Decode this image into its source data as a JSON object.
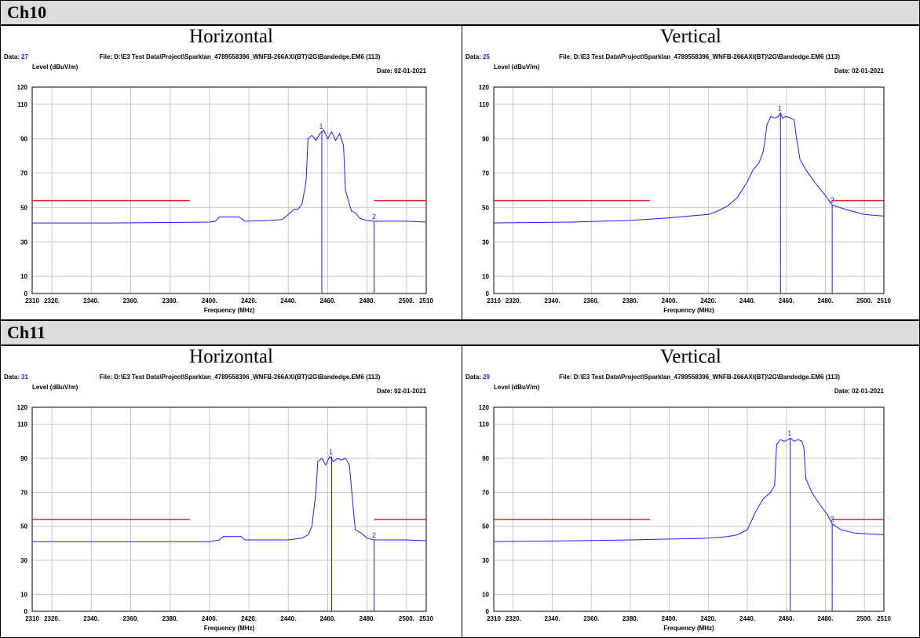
{
  "sections": [
    {
      "title": "Ch10",
      "panels": [
        {
          "polarization": "Horizontal",
          "data_label": "Data:",
          "data_num": "27",
          "file": "File: D:\\E3 Test Data\\Project\\Sparklan_4789558396_WNFB-266AXI(BT)\\2G\\Bandedge.EM6  (113)",
          "date": "Date: 02-01-2021"
        },
        {
          "polarization": "Vertical",
          "data_label": "Data:",
          "data_num": "25",
          "file": "File: D:\\E3 Test Data\\Project\\Sparklan_4789558396_WNFB-266AXI(BT)\\2G\\Bandedge.EM6  (113)",
          "date": "Date: 02-01-2021"
        }
      ]
    },
    {
      "title": "Ch11",
      "panels": [
        {
          "polarization": "Horizontal",
          "data_label": "Data:",
          "data_num": "31",
          "file": "File: D:\\E3 Test Data\\Project\\Sparklan_4789558396_WNFB-266AXI(BT)\\2G\\Bandedge.EM6  (113)",
          "date": "Date: 02-01-2021"
        },
        {
          "polarization": "Vertical",
          "data_label": "Data:",
          "data_num": "29",
          "file": "File: D:\\E3 Test Data\\Project\\Sparklan_4789558396_WNFB-266AXI(BT)\\2G\\Bandedge.EM6  (113)",
          "date": "Date: 02-01-2021"
        }
      ]
    }
  ],
  "colors": {
    "trace": "#1a1aff",
    "limit": "#e02020",
    "grid": "#c8c8c8",
    "header_bg": "#dcdcdc",
    "data_num": "#1a1aff"
  },
  "chart_data": [
    {
      "type": "line",
      "ylabel": "Level (dBuV/m)",
      "xlabel": "Frequency (MHz)",
      "xlim": [
        2310,
        2510
      ],
      "ylim": [
        0,
        120
      ],
      "grid": true,
      "xticks": [
        "2310",
        "2320.",
        "2340.",
        "2360.",
        "2380.",
        "2400.",
        "2420.",
        "2440.",
        "2460.",
        "2480.",
        "2500.",
        "2510"
      ],
      "yticks": [
        "0",
        "10",
        "30",
        "50",
        "70",
        "90",
        "110",
        "120"
      ],
      "limit_lines": [
        {
          "x": [
            2310,
            2390
          ],
          "y": 54
        },
        {
          "x": [
            2483.5,
            2510
          ],
          "y": 54
        }
      ],
      "markers": [
        {
          "label": "1",
          "x": 2457,
          "y": 94.5
        },
        {
          "label": "2",
          "x": 2483.5,
          "y": 42
        }
      ],
      "series": [
        {
          "x": [
            2310,
            2350,
            2400,
            2403,
            2405,
            2415,
            2418,
            2430,
            2437,
            2440,
            2443,
            2445,
            2447,
            2449,
            2450,
            2452,
            2454,
            2456,
            2458,
            2460,
            2462,
            2464,
            2466,
            2468,
            2469,
            2472,
            2474,
            2476,
            2478,
            2480,
            2483.5,
            2490,
            2500,
            2510
          ],
          "y": [
            41,
            41,
            41.5,
            42,
            44.5,
            44.5,
            42,
            42.5,
            43,
            46,
            49,
            49,
            52,
            65,
            90,
            92,
            89,
            93,
            95,
            90,
            94,
            89,
            93,
            86,
            60,
            48,
            47,
            44,
            43,
            42.5,
            42,
            42,
            42,
            41.5
          ]
        }
      ]
    },
    {
      "type": "line",
      "ylabel": "Level (dBuV/m)",
      "xlabel": "Frequency (MHz)",
      "xlim": [
        2310,
        2510
      ],
      "ylim": [
        0,
        120
      ],
      "grid": true,
      "xticks": [
        "2310",
        "2320.",
        "2340.",
        "2360.",
        "2380.",
        "2400.",
        "2420.",
        "2440.",
        "2460.",
        "2480.",
        "2500.",
        "2510"
      ],
      "yticks": [
        "0",
        "10",
        "30",
        "50",
        "70",
        "90",
        "110",
        "120"
      ],
      "limit_lines": [
        {
          "x": [
            2310,
            2390
          ],
          "y": 54
        },
        {
          "x": [
            2483.5,
            2510
          ],
          "y": 54
        }
      ],
      "markers": [
        {
          "label": "1",
          "x": 2457,
          "y": 105
        },
        {
          "label": "2",
          "x": 2483.5,
          "y": 51.5
        }
      ],
      "series": [
        {
          "x": [
            2310,
            2350,
            2380,
            2400,
            2410,
            2420,
            2425,
            2430,
            2435,
            2440,
            2443,
            2446,
            2448,
            2449,
            2450,
            2452,
            2454,
            2456,
            2457,
            2458,
            2460,
            2462,
            2464,
            2465,
            2467,
            2470,
            2475,
            2480,
            2483.5,
            2490,
            2500,
            2510
          ],
          "y": [
            41,
            41.5,
            42.5,
            44,
            45,
            46,
            48,
            51,
            56,
            65,
            72,
            76,
            82,
            88,
            98,
            103,
            102,
            103,
            105,
            102,
            103,
            102,
            101,
            92,
            78,
            72,
            64,
            57,
            51.5,
            49,
            46,
            45
          ]
        }
      ]
    },
    {
      "type": "line",
      "ylabel": "Level (dBuV/m)",
      "xlabel": "Frequency (MHz)",
      "xlim": [
        2310,
        2510
      ],
      "ylim": [
        0,
        120
      ],
      "grid": true,
      "xticks": [
        "2310",
        "2320.",
        "2340.",
        "2360.",
        "2380.",
        "2400.",
        "2420.",
        "2440.",
        "2460.",
        "2480.",
        "2500.",
        "2510"
      ],
      "yticks": [
        "0",
        "10",
        "30",
        "50",
        "70",
        "90",
        "110",
        "120"
      ],
      "limit_lines": [
        {
          "x": [
            2310,
            2390
          ],
          "y": 54
        },
        {
          "x": [
            2483.5,
            2510
          ],
          "y": 54
        }
      ],
      "markers": [
        {
          "label": "1",
          "x": 2462,
          "y": 91
        },
        {
          "label": "2",
          "x": 2483.5,
          "y": 42
        }
      ],
      "series": [
        {
          "x": [
            2310,
            2350,
            2400,
            2405,
            2407,
            2416,
            2418,
            2430,
            2440,
            2447,
            2450,
            2452,
            2454,
            2455,
            2457,
            2459,
            2461,
            2463,
            2465,
            2467,
            2469,
            2471,
            2473,
            2474,
            2477,
            2480,
            2483.5,
            2490,
            2500,
            2510
          ],
          "y": [
            41,
            41,
            41,
            42,
            44,
            44,
            42,
            42,
            42,
            43,
            45,
            50,
            70,
            88,
            90,
            86,
            91,
            88,
            90,
            89,
            90,
            86,
            60,
            48,
            46,
            43,
            42,
            42,
            42,
            41.5
          ]
        }
      ]
    },
    {
      "type": "line",
      "ylabel": "Level (dBuV/m)",
      "xlabel": "Frequency (MHz)",
      "xlim": [
        2310,
        2510
      ],
      "ylim": [
        0,
        120
      ],
      "grid": true,
      "xticks": [
        "2310",
        "2320.",
        "2340.",
        "2360.",
        "2380.",
        "2400.",
        "2420.",
        "2440.",
        "2460.",
        "2480.",
        "2500.",
        "2510"
      ],
      "yticks": [
        "0",
        "10",
        "30",
        "50",
        "70",
        "90",
        "110",
        "120"
      ],
      "limit_lines": [
        {
          "x": [
            2310,
            2390
          ],
          "y": 54
        },
        {
          "x": [
            2483.5,
            2510
          ],
          "y": 54
        }
      ],
      "markers": [
        {
          "label": "1",
          "x": 2462,
          "y": 102
        },
        {
          "label": "2",
          "x": 2483.5,
          "y": 51.5
        }
      ],
      "series": [
        {
          "x": [
            2310,
            2350,
            2380,
            2400,
            2420,
            2430,
            2435,
            2440,
            2444,
            2448,
            2452,
            2454,
            2455,
            2457,
            2459,
            2461,
            2462,
            2464,
            2466,
            2468,
            2469,
            2470,
            2473,
            2477,
            2481,
            2483.5,
            2488,
            2495,
            2510
          ],
          "y": [
            41,
            41.5,
            42,
            42.5,
            43,
            44,
            45,
            48,
            58,
            66,
            70,
            74,
            98,
            101,
            100,
            101,
            102,
            100,
            101,
            100,
            96,
            78,
            70,
            63,
            57,
            51.5,
            48,
            46,
            45
          ]
        }
      ]
    }
  ]
}
